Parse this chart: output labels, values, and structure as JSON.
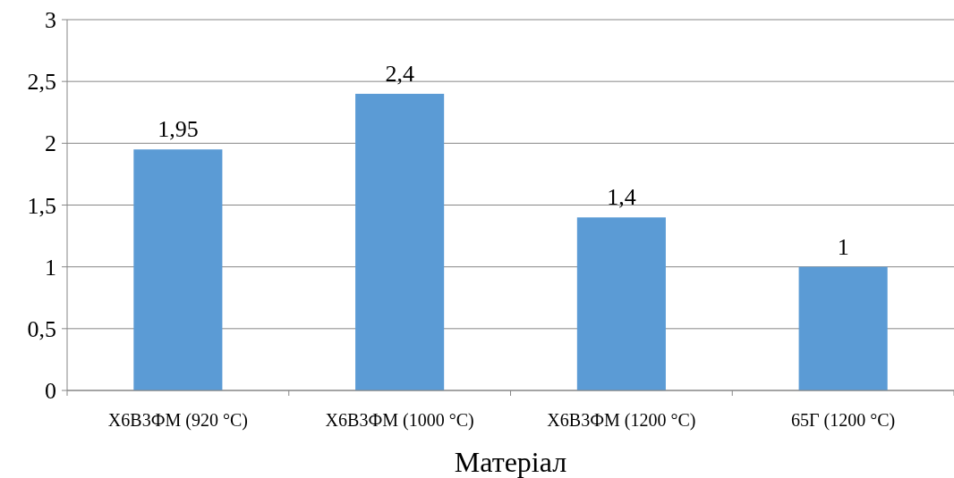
{
  "chart_data": {
    "type": "bar",
    "xlabel": "Матеріал",
    "categories": [
      "Х6В3ФМ (920 °С)",
      "Х6В3ФМ (1000 °С)",
      "Х6В3ФМ (1200 °С)",
      "65Г (1200 °С)"
    ],
    "values": [
      1.95,
      2.4,
      1.4,
      1
    ],
    "value_labels": [
      "1,95",
      "2,4",
      "1,4",
      "1"
    ],
    "color": "#5b9bd5",
    "ylim": [
      0,
      3
    ],
    "yticks": [
      0,
      {
        "value": 0.5,
        "label": "0,5"
      },
      1,
      {
        "value": 1.5,
        "label": "1,5"
      },
      2,
      {
        "value": 2.5,
        "label": "2,5"
      },
      3
    ],
    "grid": "y"
  }
}
